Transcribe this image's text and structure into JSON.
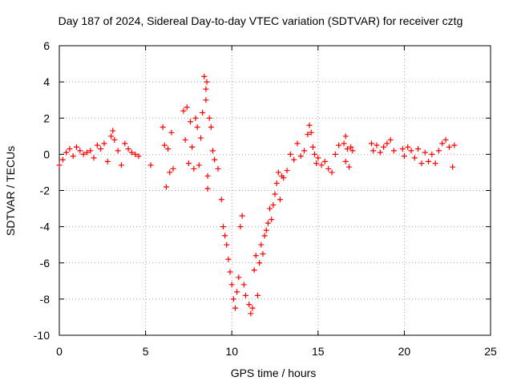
{
  "chart_data": {
    "type": "scatter",
    "title": "Day 187 of 2024, Sidereal Day-to-day VTEC variation (SDTVAR) for receiver cztg",
    "xlabel": "GPS time / hours",
    "ylabel": "SDTVAR / TECUs",
    "xlim": [
      0,
      25
    ],
    "ylim": [
      -10,
      6
    ],
    "xticks": [
      0,
      5,
      10,
      15,
      20,
      25
    ],
    "yticks": [
      -10,
      -8,
      -6,
      -4,
      -2,
      0,
      2,
      4,
      6
    ],
    "grid": true,
    "marker": "plus",
    "color": "#ff0000",
    "series": [
      {
        "name": "SDTVAR",
        "x": [
          0.0,
          0.2,
          0.4,
          0.6,
          0.8,
          1.0,
          1.2,
          1.4,
          1.6,
          1.8,
          2.0,
          2.2,
          2.4,
          2.6,
          2.8,
          3.0,
          3.2,
          3.4,
          3.6,
          3.8,
          4.0,
          4.2,
          4.4,
          4.6,
          5.3,
          6.0,
          6.1,
          6.2,
          6.3,
          6.4,
          6.5,
          6.6,
          7.2,
          7.3,
          7.4,
          7.5,
          7.6,
          7.7,
          7.8,
          7.9,
          8.0,
          8.1,
          8.2,
          8.3,
          8.4,
          8.5,
          8.6,
          8.7,
          8.8,
          8.9,
          9.0,
          9.2,
          9.4,
          9.5,
          9.6,
          9.7,
          9.8,
          9.9,
          10.0,
          10.1,
          10.2,
          10.3,
          10.4,
          10.5,
          10.6,
          10.7,
          10.8,
          11.0,
          11.1,
          11.2,
          11.3,
          11.4,
          11.5,
          11.6,
          11.7,
          11.8,
          11.9,
          12.0,
          12.1,
          12.2,
          12.3,
          12.4,
          12.5,
          12.6,
          12.7,
          12.8,
          12.9,
          13.0,
          13.2,
          13.4,
          13.6,
          13.8,
          14.0,
          14.2,
          14.4,
          14.5,
          14.6,
          14.7,
          14.8,
          14.9,
          15.0,
          15.2,
          15.4,
          15.6,
          15.8,
          16.0,
          16.2,
          16.5,
          16.6,
          16.7,
          16.8,
          16.9,
          17.0,
          18.1,
          18.2,
          18.4,
          18.6,
          18.8,
          19.0,
          19.2,
          19.4,
          19.9,
          20.0,
          20.2,
          20.4,
          20.6,
          20.8,
          21.0,
          21.2,
          21.4,
          21.6,
          21.8,
          22.0,
          22.2,
          22.4,
          22.6,
          22.8,
          22.9,
          3.1,
          16.6,
          8.5,
          8.55,
          8.6
        ],
        "y": [
          -0.6,
          -0.3,
          0.1,
          0.3,
          -0.1,
          0.4,
          0.2,
          0.0,
          0.1,
          0.2,
          -0.2,
          0.5,
          0.3,
          0.6,
          -0.4,
          1.0,
          0.8,
          0.2,
          -0.6,
          0.6,
          0.3,
          0.1,
          0.0,
          -0.1,
          -0.6,
          1.5,
          0.5,
          -1.8,
          0.3,
          -1.0,
          1.2,
          -0.8,
          2.4,
          0.8,
          2.6,
          -0.5,
          1.8,
          0.4,
          -0.8,
          2.0,
          1.5,
          -0.6,
          0.9,
          2.3,
          4.3,
          3.0,
          -1.2,
          2.0,
          1.5,
          0.2,
          -0.3,
          -0.8,
          -2.5,
          -4.0,
          -4.5,
          -5.0,
          -5.8,
          -6.5,
          -7.2,
          -8.0,
          -8.5,
          -7.6,
          -6.8,
          -4.0,
          -3.4,
          -7.2,
          -7.8,
          -8.3,
          -8.8,
          -8.5,
          -6.4,
          -5.6,
          -7.8,
          -6.0,
          -5.0,
          -5.5,
          -4.5,
          -4.2,
          -3.8,
          -3.0,
          -3.6,
          -2.8,
          -2.2,
          -1.6,
          -1.0,
          -2.5,
          -1.2,
          -1.3,
          -0.9,
          0.0,
          -0.3,
          0.6,
          -0.1,
          0.2,
          1.1,
          1.6,
          1.2,
          0.4,
          0.0,
          -0.5,
          -0.2,
          -0.6,
          -0.4,
          -0.8,
          -1.0,
          0.0,
          0.5,
          0.6,
          -0.4,
          0.3,
          -0.7,
          0.4,
          0.2,
          0.6,
          0.2,
          0.5,
          0.1,
          0.4,
          0.6,
          0.8,
          0.2,
          0.3,
          -0.1,
          0.4,
          0.2,
          -0.2,
          0.3,
          -0.5,
          0.1,
          -0.4,
          0.0,
          -0.5,
          0.2,
          0.6,
          0.8,
          0.4,
          -0.7,
          0.5,
          1.3,
          1.0,
          3.6,
          4.0,
          -1.9
        ]
      }
    ]
  }
}
